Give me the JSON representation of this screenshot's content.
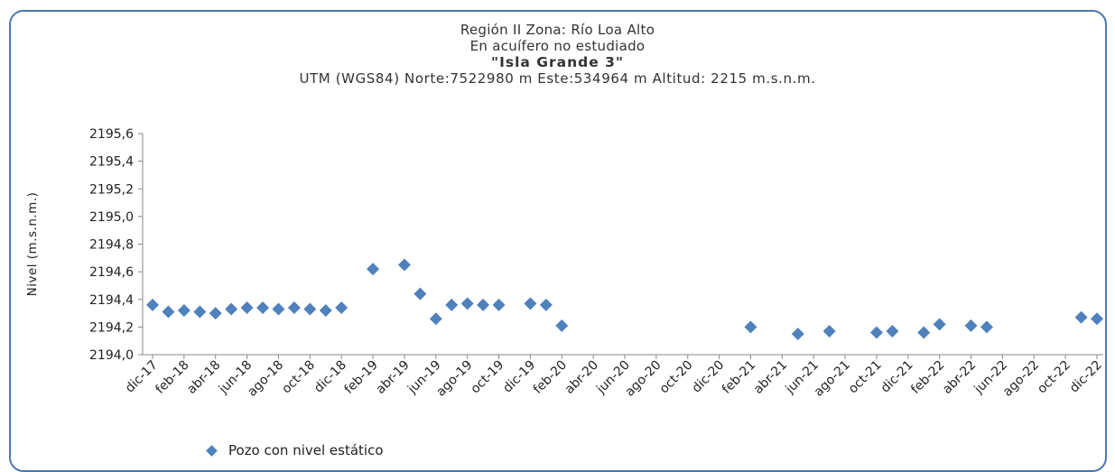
{
  "chart_data": {
    "type": "scatter",
    "title_lines": [
      "Región II  Zona: Río Loa Alto",
      "En acuífero no estudiado",
      "\"Isla Grande 3\"",
      "UTM (WGS84) Norte:7522980 m   Este:534964 m Altitud: 2215 m.s.n.m."
    ],
    "ylabel": "Nivel (m.s.n.m.)",
    "xlabel": "",
    "ylim": [
      2194.0,
      2195.6
    ],
    "yticks": [
      "2195,6",
      "2195,4",
      "2195,2",
      "2195,0",
      "2194,8",
      "2194,6",
      "2194,4",
      "2194,2",
      "2194,0"
    ],
    "ytick_values": [
      2195.6,
      2195.4,
      2195.2,
      2195.0,
      2194.8,
      2194.6,
      2194.4,
      2194.2,
      2194.0
    ],
    "xticks": [
      "dic-17",
      "feb-18",
      "abr-18",
      "jun-18",
      "ago-18",
      "oct-18",
      "dic-18",
      "feb-19",
      "abr-19",
      "jun-19",
      "ago-19",
      "oct-19",
      "dic-19",
      "feb-20",
      "abr-20",
      "jun-20",
      "ago-20",
      "oct-20",
      "dic-20",
      "feb-21",
      "abr-21",
      "jun-21",
      "ago-21",
      "oct-21",
      "dic-21",
      "feb-22",
      "abr-22",
      "jun-22",
      "ago-22",
      "oct-22",
      "dic-22"
    ],
    "grid": false,
    "legend_position": "bottom-left",
    "series": [
      {
        "name": "Pozo con nivel estático",
        "color": "#4f81bd",
        "points": [
          {
            "x": 0.0,
            "y": 2194.36
          },
          {
            "x": 1.0,
            "y": 2194.31
          },
          {
            "x": 2.0,
            "y": 2194.32
          },
          {
            "x": 3.0,
            "y": 2194.31
          },
          {
            "x": 4.0,
            "y": 2194.3
          },
          {
            "x": 5.0,
            "y": 2194.33
          },
          {
            "x": 6.0,
            "y": 2194.34
          },
          {
            "x": 7.0,
            "y": 2194.34
          },
          {
            "x": 8.0,
            "y": 2194.33
          },
          {
            "x": 9.0,
            "y": 2194.34
          },
          {
            "x": 10.0,
            "y": 2194.33
          },
          {
            "x": 11.0,
            "y": 2194.32
          },
          {
            "x": 12.0,
            "y": 2194.34
          },
          {
            "x": 14.0,
            "y": 2194.62
          },
          {
            "x": 16.0,
            "y": 2194.65
          },
          {
            "x": 17.0,
            "y": 2194.44
          },
          {
            "x": 18.0,
            "y": 2194.26
          },
          {
            "x": 19.0,
            "y": 2194.36
          },
          {
            "x": 20.0,
            "y": 2194.37
          },
          {
            "x": 21.0,
            "y": 2194.36
          },
          {
            "x": 22.0,
            "y": 2194.36
          },
          {
            "x": 24.0,
            "y": 2194.37
          },
          {
            "x": 25.0,
            "y": 2194.36
          },
          {
            "x": 26.0,
            "y": 2194.21
          },
          {
            "x": 38.0,
            "y": 2194.2
          },
          {
            "x": 41.0,
            "y": 2194.15
          },
          {
            "x": 43.0,
            "y": 2194.17
          },
          {
            "x": 46.0,
            "y": 2194.16
          },
          {
            "x": 47.0,
            "y": 2194.17
          },
          {
            "x": 49.0,
            "y": 2194.16
          },
          {
            "x": 50.0,
            "y": 2194.22
          },
          {
            "x": 52.0,
            "y": 2194.21
          },
          {
            "x": 53.0,
            "y": 2194.2
          },
          {
            "x": 59.0,
            "y": 2194.27
          },
          {
            "x": 60.0,
            "y": 2194.26
          }
        ]
      }
    ]
  }
}
